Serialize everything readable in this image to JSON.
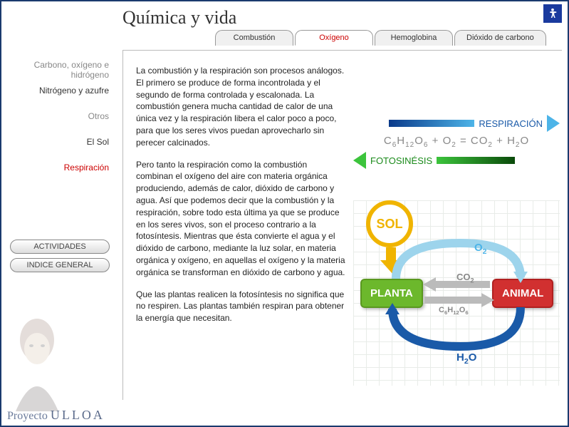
{
  "header": {
    "title": "Química y vida"
  },
  "tabs": [
    {
      "label": "Combustión",
      "active": false
    },
    {
      "label": "Oxígeno",
      "active": true
    },
    {
      "label": "Hemoglobina",
      "active": false
    },
    {
      "label": "Dióxido de carbono",
      "active": false
    }
  ],
  "sidebar": {
    "items": [
      {
        "label": "Carbono, oxígeno e hidrógeno",
        "kind": "muted"
      },
      {
        "label": "Nitrógeno y azufre",
        "kind": "normal"
      },
      {
        "label": "Otros",
        "kind": "muted"
      },
      {
        "label": "El Sol",
        "kind": "normal"
      },
      {
        "label": "Respiración",
        "kind": "active"
      }
    ],
    "buttons": {
      "actividades": "ACTIVIDADES",
      "indice": "INDICE GENERAL"
    }
  },
  "main": {
    "paragraphs": [
      "La combustión y la respiración son procesos análogos. El primero se produce de forma incontrolada y el segundo de forma controlada y escalonada. La combustión genera mucha cantidad de calor de una única vez y la respiración libera el calor poco a poco, para que los seres vivos puedan aprovecharlo sin perecer calcinados.",
      "Pero tanto la respiración como la combustión combinan el oxígeno del aire con materia orgánica produciendo, además de calor, dióxido de carbono y agua. Así que podemos decir que la combustión y la respiración, sobre todo esta última ya que se produce en los seres vivos, son el proceso contrario a la fotosíntesis. Mientras que ésta convierte el agua y el dióxido de carbono, mediante la luz solar, en materia orgánica y oxígeno, en aquellas el oxígeno y la materia orgánica se transforman en dióxido de carbono y agua.",
      "Que las plantas realicen la fotosíntesis no significa que no respiren. Las plantas también respiran para obtener la energía que necesitan."
    ]
  },
  "diagram": {
    "respiration_label": "RESPIRACIÓN",
    "photosynthesis_label": "FOTOSINÉSIS",
    "equation_html": "C<sub>6</sub>H<sub>12</sub>O<sub>6</sub> + O<sub>2</sub>  = CO<sub>2</sub> + H<sub>2</sub>O",
    "sol": "SOL",
    "planta": "PLANTA",
    "animal": "ANIMAL",
    "o2": "O<sub>2</sub>",
    "co2": "CO<sub>2</sub>",
    "glucose": "C<sub>6</sub>H<sub>12</sub>O<sub>6</sub>",
    "h2o": "H<sub>2</sub>O",
    "colors": {
      "resp_arrow_start": "#0a3a8a",
      "resp_arrow_end": "#4db4e8",
      "foto_arrow_start": "#3cc43c",
      "foto_arrow_end": "#0a4a0a",
      "sol_color": "#f0b400",
      "planta_bg": "#6cb82c",
      "animal_bg": "#d13030",
      "o2_color": "#4db4e8",
      "h2o_color": "#1a5aa8",
      "grey": "#888888"
    }
  },
  "footer": {
    "project": "Proyecto",
    "name": "ULLOA"
  }
}
